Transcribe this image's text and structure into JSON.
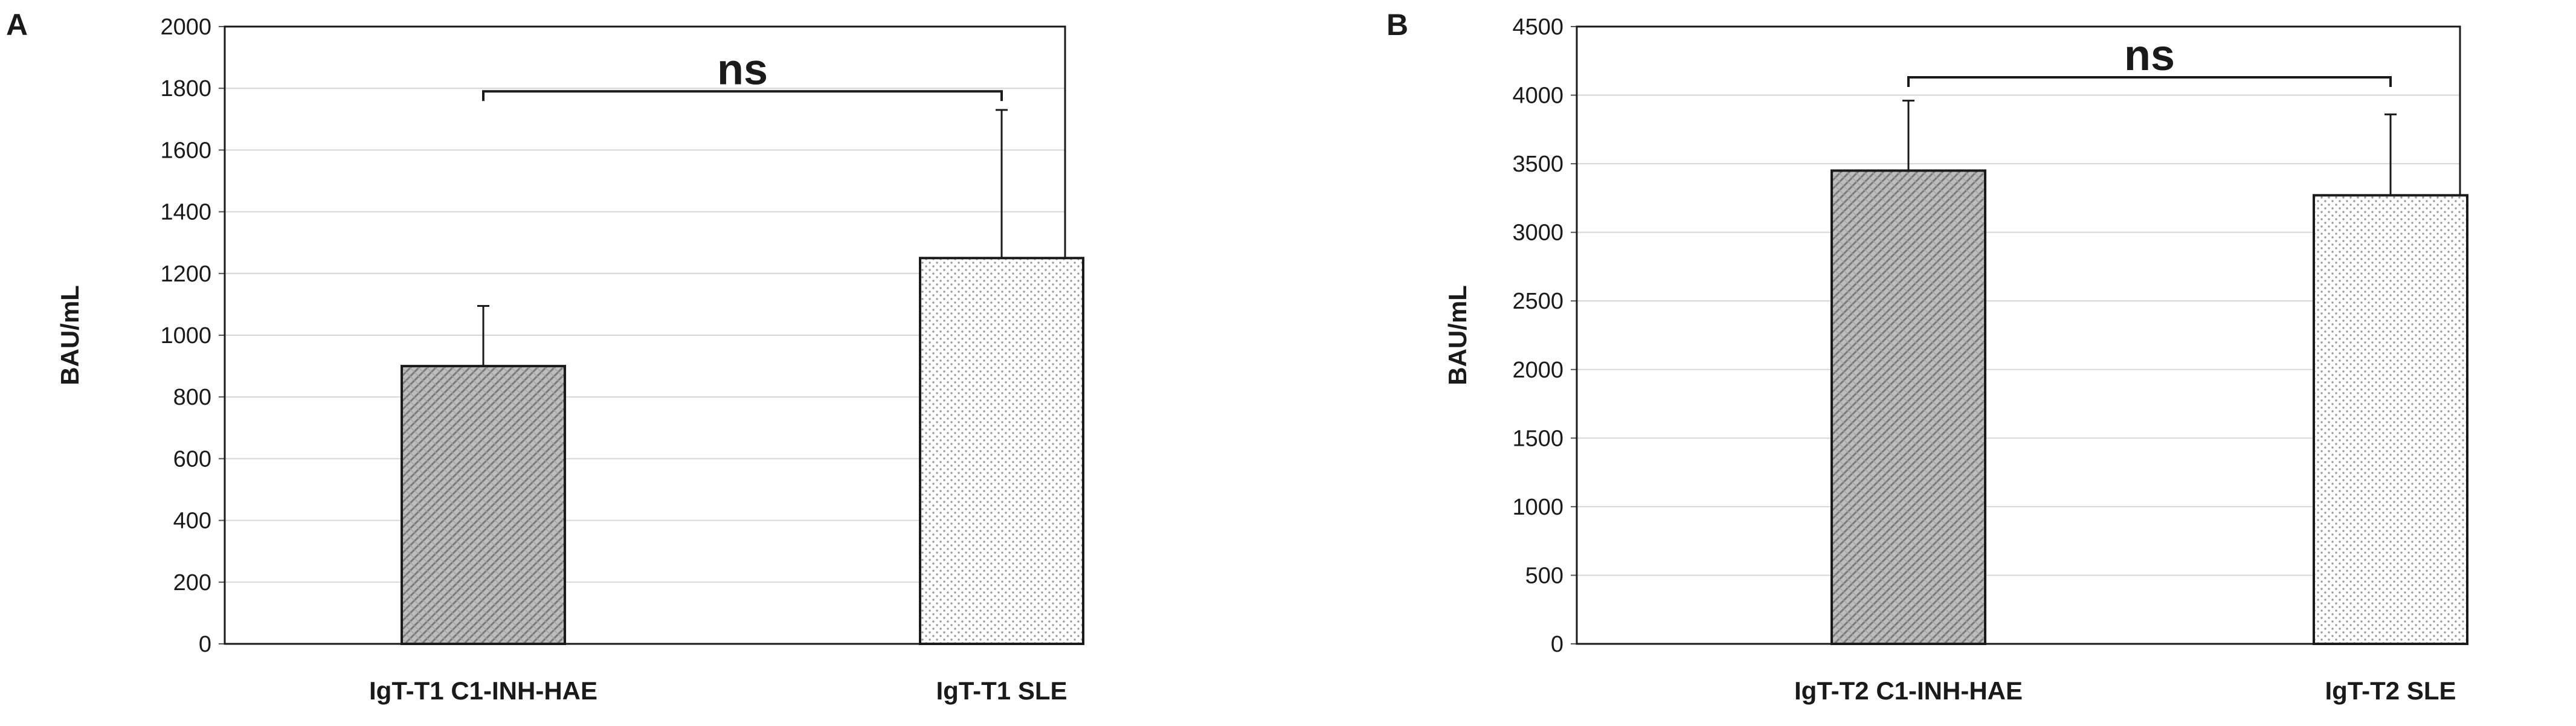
{
  "chart_data": [
    {
      "type": "bar",
      "panel_label": "A",
      "categories": [
        "IgT-T1 C1-INH-HAE",
        "IgT-T1 SLE"
      ],
      "values": [
        900,
        1250
      ],
      "error_upper": [
        1095,
        1730
      ],
      "ylabel": "BAU/mL",
      "ylim": [
        0,
        2000
      ],
      "yticks": [
        "0",
        "200",
        "400",
        "600",
        "800",
        "1000",
        "1200",
        "1400",
        "1600",
        "1800",
        "2000"
      ],
      "grid": true,
      "legend": "none",
      "patterns": [
        "diagonal-hatch",
        "dots"
      ],
      "significance": {
        "label": "ns",
        "between": [
          0,
          1
        ],
        "y": 1790
      }
    },
    {
      "type": "bar",
      "panel_label": "B",
      "categories": [
        "IgT-T2 C1-INH-HAE",
        "IgT-T2 SLE"
      ],
      "values": [
        3450,
        3270
      ],
      "error_upper": [
        3960,
        3860
      ],
      "ylabel": "BAU/mL",
      "ylim": [
        0,
        4500
      ],
      "yticks": [
        "0",
        "500",
        "1000",
        "1500",
        "2000",
        "2500",
        "3000",
        "3500",
        "4000",
        "4500"
      ],
      "grid": true,
      "legend": "none",
      "patterns": [
        "diagonal-hatch",
        "dots"
      ],
      "significance": {
        "label": "ns",
        "between": [
          0,
          1
        ],
        "y": 4130
      }
    }
  ]
}
